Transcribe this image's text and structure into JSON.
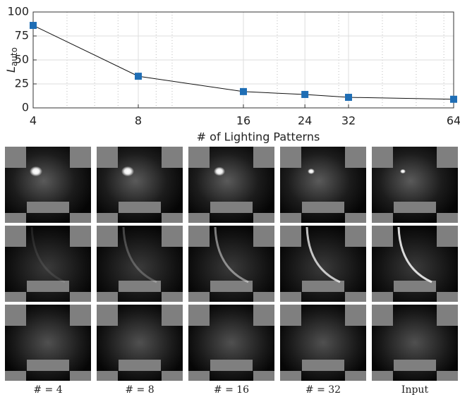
{
  "chart_data": {
    "type": "line",
    "ylabel": "L",
    "ylabel_subscript": "auto",
    "xlabel": "# of Lighting Patterns",
    "x": [
      4,
      8,
      16,
      24,
      32,
      64
    ],
    "series": [
      {
        "color": "#1f6eb5",
        "values": [
          86,
          33,
          17,
          14,
          11,
          9
        ]
      }
    ],
    "xscale": "log",
    "xlim": [
      4,
      64
    ],
    "xticks": [
      4,
      8,
      16,
      24,
      32,
      64
    ],
    "minor_xticks": [
      5,
      6,
      7,
      9,
      10,
      20,
      30,
      40,
      50,
      60
    ],
    "ylim": [
      0,
      100
    ],
    "yticks": [
      0,
      25,
      50,
      75,
      100
    ],
    "grid": true
  },
  "image_grid": {
    "column_labels": [
      "# = 4",
      "# = 8",
      "# = 16",
      "# = 32",
      "Input"
    ]
  }
}
